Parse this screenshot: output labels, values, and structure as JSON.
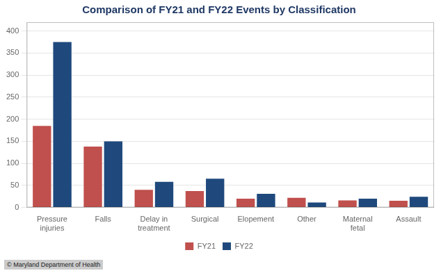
{
  "chart_data": {
    "type": "bar",
    "title": "Comparison of FY21 and FY22 Events by Classification",
    "categories": [
      "Pressure\ninjuries",
      "Falls",
      "Delay in\ntreatment",
      "Surgical",
      "Elopement",
      "Other",
      "Maternal\nfetal",
      "Assault"
    ],
    "series": [
      {
        "name": "FY21",
        "color": "#c0504d",
        "values": [
          185,
          138,
          40,
          37,
          20,
          22,
          16,
          15
        ]
      },
      {
        "name": "FY22",
        "color": "#1f497d",
        "values": [
          375,
          150,
          58,
          65,
          31,
          11,
          20,
          24
        ]
      }
    ],
    "ylim": [
      0,
      420
    ],
    "yticks": [
      0,
      50,
      100,
      150,
      200,
      250,
      300,
      350,
      400
    ],
    "grid": true,
    "legend": "bottom",
    "annotations": [
      "© Maryland Department of Health"
    ]
  }
}
